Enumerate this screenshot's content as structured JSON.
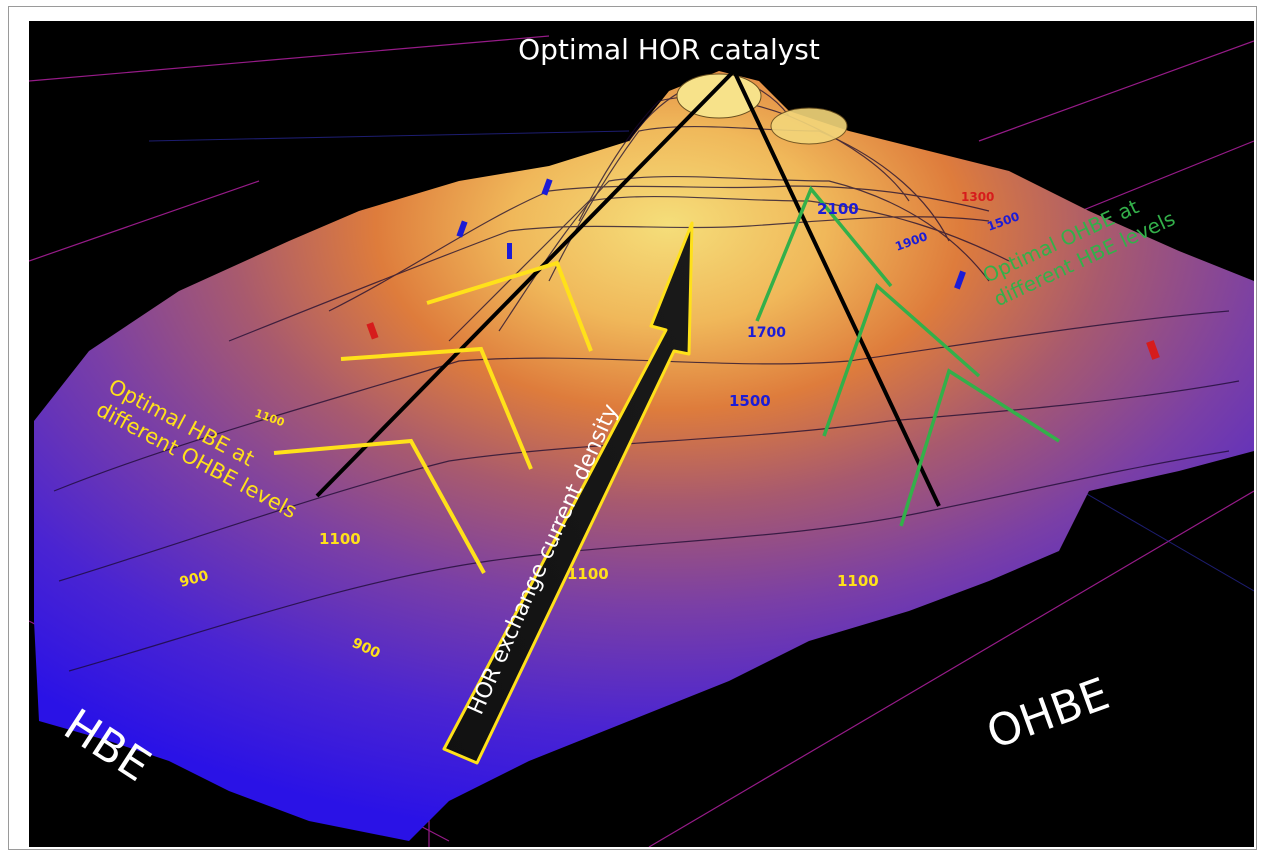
{
  "title": "Optimal HOR catalyst",
  "axes": {
    "x_label": "HBE",
    "y_label": "OHBE"
  },
  "arrow_label": "HOR exchange current density",
  "annotations": {
    "yellow": "Optimal HBE at different OHBE levels",
    "yellow_lines": [
      "Optimal HBE at",
      "different OHBE levels"
    ],
    "green": "Optimal OHBE at different HBE levels",
    "green_lines": [
      "Optimal OHBE at",
      "different HBE levels"
    ]
  },
  "contour_labels": {
    "yellow": [
      "1100",
      "900",
      "1100",
      "1100",
      "900",
      "1100"
    ],
    "blue": [
      "2100",
      "1900",
      "1700",
      "1500"
    ],
    "red": [
      "1300",
      "1500"
    ]
  },
  "colors": {
    "background": "#000000",
    "low": "#3a1fd8",
    "mid": "#8a4a98",
    "high": "#e48a3c",
    "peak": "#f2d56e",
    "yellow_annotation": "#ffe11a",
    "green_annotation": "#33b04a",
    "contour_blue": "#1c1cd6",
    "axis_text": "#ffffff"
  }
}
